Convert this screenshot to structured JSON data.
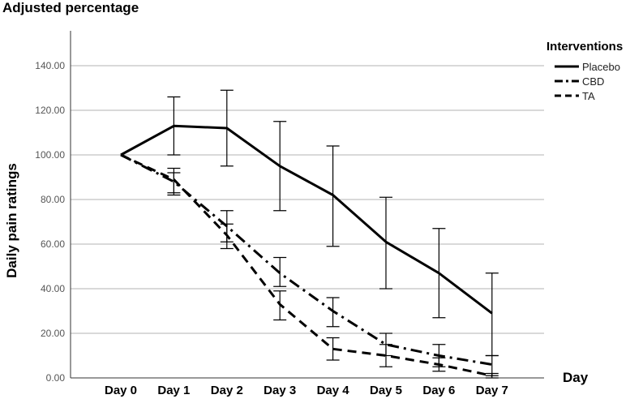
{
  "chart_data": {
    "type": "line",
    "title": "Adjusted percentage",
    "ylabel": "Daily pain ratings",
    "xlabel": "Day",
    "ylim": [
      0,
      140
    ],
    "yticks": [
      "0.00",
      "20.00",
      "40.00",
      "60.00",
      "80.00",
      "100.00",
      "120.00",
      "140.00"
    ],
    "categories": [
      "Day 0",
      "Day 1",
      "Day 2",
      "Day 3",
      "Day 4",
      "Day 5",
      "Day 6",
      "Day 7"
    ],
    "grid": true,
    "legend": {
      "title": "Interventions",
      "placement": "top-right"
    },
    "series": [
      {
        "name": "Placebo",
        "style": "solid",
        "values": [
          100,
          113,
          112,
          95,
          82,
          61,
          47,
          29
        ],
        "error_low": [
          null,
          100,
          95,
          75,
          59,
          40,
          27,
          10
        ],
        "error_high": [
          null,
          126,
          129,
          115,
          104,
          81,
          67,
          47
        ]
      },
      {
        "name": "CBD",
        "style": "dash-dot",
        "values": [
          100,
          88,
          68,
          47,
          30,
          15,
          10,
          6
        ],
        "error_low": [
          null,
          83,
          61,
          41,
          23,
          10,
          5,
          1
        ],
        "error_high": [
          null,
          94,
          75,
          54,
          36,
          20,
          15,
          10
        ]
      },
      {
        "name": "TA",
        "style": "dashed",
        "values": [
          100,
          89,
          64,
          33,
          13,
          10,
          6,
          1
        ],
        "error_low": [
          null,
          82,
          58,
          26,
          8,
          5,
          3,
          0
        ],
        "error_high": [
          null,
          92,
          69,
          39,
          18,
          15,
          9,
          2
        ]
      }
    ]
  }
}
